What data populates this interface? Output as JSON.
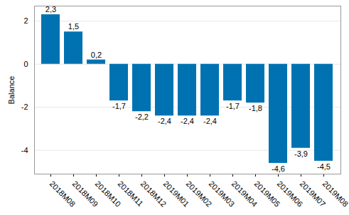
{
  "chart_data": {
    "type": "bar",
    "categories": [
      "2018M08",
      "2018M09",
      "2018M10",
      "2018M11",
      "2018M12",
      "2019M01",
      "2019M02",
      "2019M03",
      "2019M04",
      "2019M05",
      "2019M06",
      "2019M07",
      "2019M08"
    ],
    "values": [
      2.3,
      1.5,
      0.2,
      -1.7,
      -2.2,
      -2.4,
      -2.4,
      -2.4,
      -1.7,
      -1.8,
      -4.6,
      -3.9,
      -4.5
    ],
    "value_labels": [
      "2,3",
      "1,5",
      "0,2",
      "-1,7",
      "-2,2",
      "-2,4",
      "-2,4",
      "-2,4",
      "-1,7",
      "-1,8",
      "-4,6",
      "-3,9",
      "-4,5"
    ],
    "data_labels": true,
    "color": "#0072b1",
    "y_label": "Balance",
    "ylim": [
      -5.1,
      2.7
    ],
    "yticks": [
      -4,
      -2,
      0,
      2
    ],
    "grid": true
  }
}
